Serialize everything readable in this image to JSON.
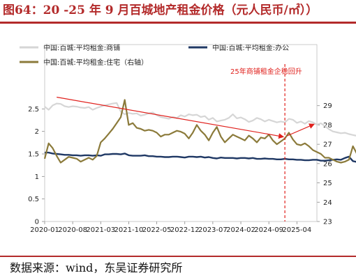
{
  "title": "图64：20 -25 年 9 月百城地产租金价格（元人民币/㎡））",
  "source": "数据来源：wind，东吴证券研究所",
  "chart_data": {
    "type": "line",
    "x_ticks": [
      "2020-01",
      "2020-08",
      "2021-03",
      "2021-10",
      "2022-05",
      "2022-12",
      "2023-07",
      "2024-02",
      "2024-09",
      "2025-04"
    ],
    "x_range": [
      "2020-01",
      "2025-09"
    ],
    "y_left": {
      "min": 0,
      "max": 3,
      "ticks": [
        "0",
        "0.5",
        "1",
        "1.5",
        "2",
        "2.5"
      ]
    },
    "y_right": {
      "min": 23,
      "max": 30,
      "ticks": [
        "23",
        "24",
        "25",
        "26",
        "27",
        "28",
        "29"
      ]
    },
    "annotation": {
      "text": "25年商铺租金企稳回升",
      "x": "2025-01"
    },
    "series": [
      {
        "name": "中国:百城:平均租金:商铺",
        "axis": "left",
        "color": "#d6d6d6",
        "values": [
          2.55,
          2.48,
          2.58,
          2.62,
          2.61,
          2.56,
          2.54,
          2.56,
          2.55,
          2.53,
          2.52,
          2.54,
          2.48,
          2.52,
          2.55,
          2.58,
          2.6,
          2.62,
          2.63,
          2.44,
          2.38,
          2.41,
          2.39,
          2.4,
          2.35,
          2.37,
          2.4,
          2.42,
          2.36,
          2.32,
          2.3,
          2.28,
          2.32,
          2.3,
          2.36,
          2.33,
          2.38,
          2.36,
          2.37,
          2.32,
          2.34,
          2.26,
          2.3,
          2.22,
          2.24,
          2.26,
          2.3,
          2.38,
          2.29,
          2.31,
          2.27,
          2.21,
          2.24,
          2.3,
          2.27,
          2.22,
          2.26,
          2.23,
          2.2,
          2.22,
          2.2,
          2.28,
          2.26,
          2.19,
          2.22,
          2.17,
          2.23,
          2.2,
          2.15,
          2.18,
          2.12,
          2.05,
          2.0,
          1.98,
          1.96,
          1.97,
          1.94,
          1.92,
          1.9,
          1.95,
          1.97,
          2.0,
          2.0,
          2.01,
          2.02,
          2.02,
          2.0,
          2.03,
          2.03,
          2.04
        ]
      },
      {
        "name": "中国:百城:平均租金:办公",
        "axis": "left",
        "color": "#1f3864",
        "values": [
          1.53,
          1.53,
          1.51,
          1.5,
          1.49,
          1.48,
          1.48,
          1.47,
          1.47,
          1.46,
          1.47,
          1.47,
          1.46,
          1.47,
          1.46,
          1.49,
          1.49,
          1.5,
          1.5,
          1.49,
          1.51,
          1.47,
          1.46,
          1.46,
          1.46,
          1.47,
          1.45,
          1.45,
          1.44,
          1.44,
          1.43,
          1.43,
          1.44,
          1.44,
          1.43,
          1.42,
          1.44,
          1.44,
          1.43,
          1.44,
          1.42,
          1.43,
          1.41,
          1.4,
          1.42,
          1.41,
          1.41,
          1.41,
          1.4,
          1.41,
          1.41,
          1.4,
          1.41,
          1.39,
          1.39,
          1.4,
          1.39,
          1.39,
          1.38,
          1.38,
          1.39,
          1.38,
          1.38,
          1.37,
          1.37,
          1.36,
          1.36,
          1.37,
          1.37,
          1.35,
          1.35,
          1.36,
          1.37,
          1.38,
          1.37,
          1.41,
          1.44,
          1.34,
          1.32,
          1.31,
          1.3,
          1.28,
          1.28,
          1.27,
          1.27,
          1.26,
          1.25,
          1.24,
          1.21,
          1.2
        ]
      },
      {
        "name": "中国:百城:平均租金:住宅（右轴）",
        "axis": "right",
        "color": "#8b7a3a",
        "values": [
          26.25,
          27.05,
          26.8,
          26.4,
          26.05,
          26.2,
          26.35,
          26.3,
          26.25,
          26.1,
          26.2,
          26.3,
          26.2,
          26.4,
          27.1,
          27.3,
          27.55,
          27.8,
          28.1,
          28.4,
          29.3,
          28.0,
          28.1,
          27.85,
          27.8,
          27.7,
          27.75,
          27.7,
          27.6,
          27.4,
          27.5,
          27.5,
          27.6,
          27.7,
          27.65,
          27.55,
          27.3,
          27.6,
          28.0,
          27.7,
          27.5,
          27.2,
          27.6,
          27.9,
          27.4,
          27.1,
          27.3,
          27.5,
          27.4,
          27.3,
          27.2,
          27.45,
          27.3,
          27.1,
          27.35,
          27.3,
          27.5,
          27.2,
          27.0,
          27.15,
          27.3,
          27.6,
          27.25,
          27.0,
          26.95,
          27.05,
          26.9,
          26.7,
          26.6,
          26.5,
          26.3,
          26.3,
          26.2,
          26.1,
          26.05,
          26.1,
          26.2,
          26.9,
          26.5,
          26.0,
          25.95,
          25.95,
          26.0,
          26.05,
          25.95,
          26.1,
          25.9,
          25.7,
          25.7,
          25.5
        ]
      }
    ]
  }
}
